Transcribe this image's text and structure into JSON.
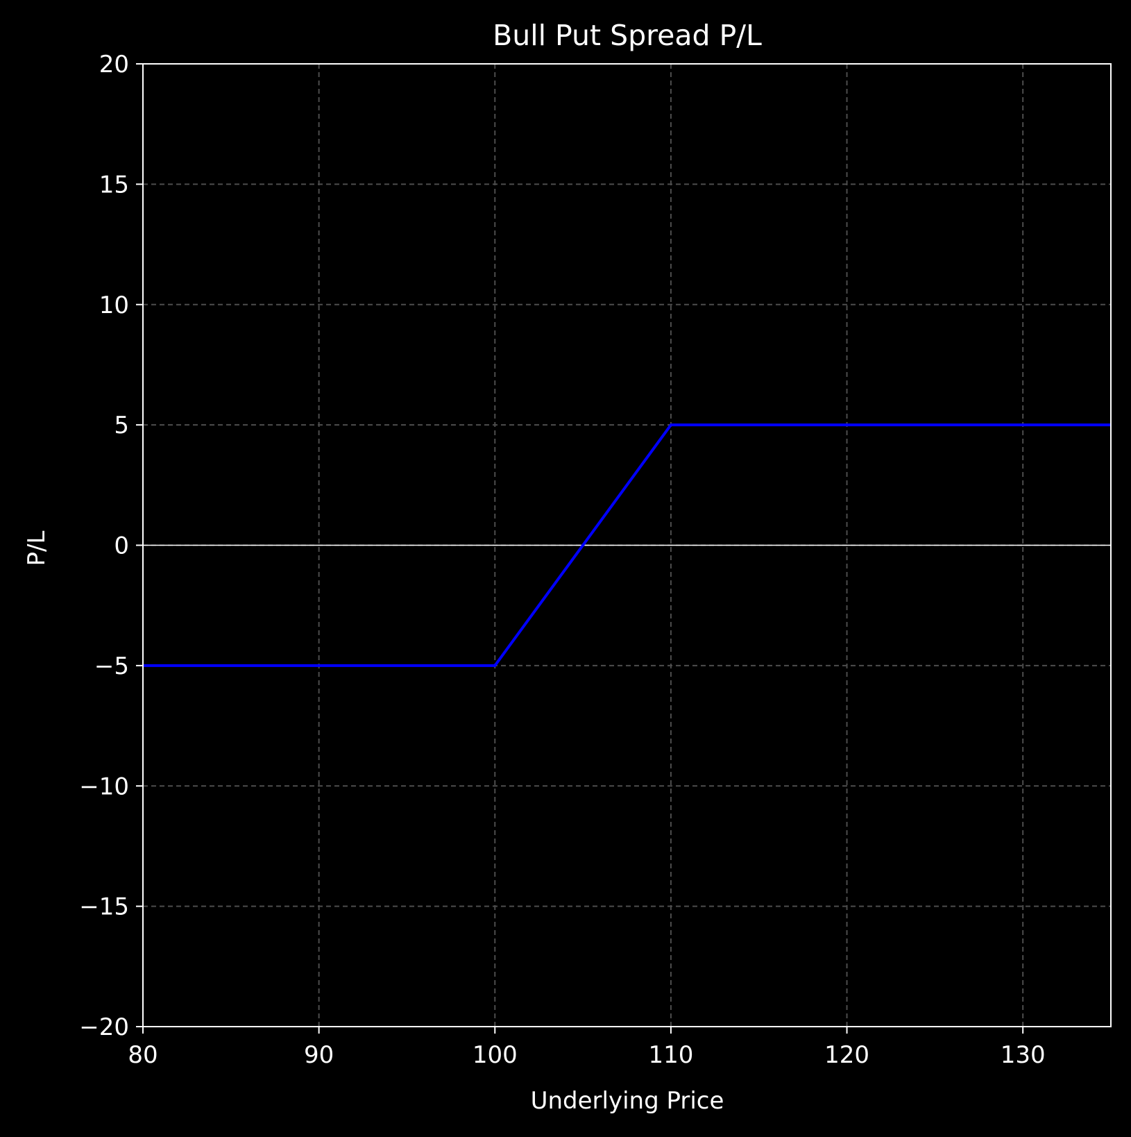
{
  "chart_data": {
    "type": "line",
    "title": "Bull Put Spread P/L",
    "xlabel": "Underlying Price",
    "ylabel": "P/L",
    "xlim": [
      80,
      135
    ],
    "ylim": [
      -20,
      20
    ],
    "xticks": [
      80,
      90,
      100,
      110,
      120,
      130
    ],
    "yticks": [
      -20,
      -15,
      -10,
      -5,
      0,
      5,
      10,
      15,
      20
    ],
    "xtick_labels": [
      "80",
      "90",
      "100",
      "110",
      "120",
      "130"
    ],
    "ytick_labels": [
      "−20",
      "−15",
      "−10",
      "−5",
      "0",
      "5",
      "10",
      "15",
      "20"
    ],
    "grid": true,
    "zero_line": true,
    "series": [
      {
        "color": "#0000ff",
        "x": [
          80,
          100,
          110,
          135
        ],
        "y": [
          -5,
          -5,
          5,
          5
        ]
      }
    ],
    "colors": {
      "background": "#000000",
      "axes": "#ffffff",
      "grid": "#4d4d4d",
      "text": "#ffffff"
    }
  }
}
